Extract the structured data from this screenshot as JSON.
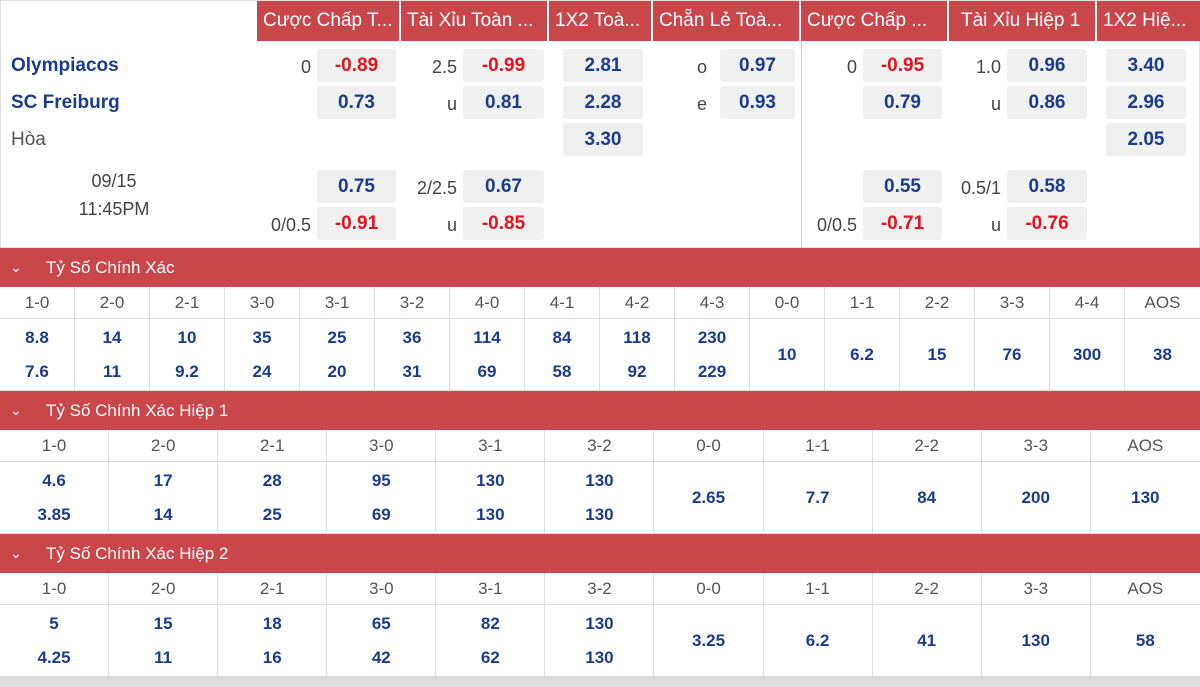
{
  "headers": [
    "Cược Chấp T...",
    "Tài Xỉu Toàn ...",
    "1X2 Toà...",
    "Chẵn Lẻ Toà...",
    "Cược Chấp ...",
    "Tài Xỉu Hiệp 1",
    "1X2 Hiệ..."
  ],
  "match": {
    "home": "Olympiacos",
    "away": "SC Freiburg",
    "draw": "Hòa",
    "date": "09/15",
    "time": "11:45PM"
  },
  "main": {
    "ah_line1": "0",
    "ah_home1": "-0.89",
    "ah_away1": "0.73",
    "ou_line1": "2.5",
    "ou_over1": "-0.99",
    "ou_u1": "u",
    "ou_under1": "0.81",
    "x12_home": "2.81",
    "x12_away": "2.28",
    "x12_draw": "3.30",
    "oe_o": "o",
    "oe_odd": "0.97",
    "oe_e": "e",
    "oe_even": "0.93",
    "ah_home2": "0.75",
    "ah_line2": "0/0.5",
    "ah_away2": "-0.91",
    "ou_line2": "2/2.5",
    "ou_over2": "0.67",
    "ou_u2": "u",
    "ou_under2": "-0.85"
  },
  "half1": {
    "ah_line1": "0",
    "ah_home1": "-0.95",
    "ah_away1": "0.79",
    "ou_line1": "1.0",
    "ou_over1": "0.96",
    "ou_u1": "u",
    "ou_under1": "0.86",
    "x12_home": "3.40",
    "x12_away": "2.96",
    "x12_draw": "2.05",
    "ah_home2": "0.55",
    "ah_line2": "0/0.5",
    "ah_away2": "-0.71",
    "ou_line2": "0.5/1",
    "ou_over2": "0.58",
    "ou_u2": "u",
    "ou_under2": "-0.76"
  },
  "sections": [
    {
      "title": "Tỷ Số Chính Xác",
      "cells": [
        {
          "label": "1-0",
          "v": [
            "8.8",
            "7.6"
          ]
        },
        {
          "label": "2-0",
          "v": [
            "14",
            "11"
          ]
        },
        {
          "label": "2-1",
          "v": [
            "10",
            "9.2"
          ]
        },
        {
          "label": "3-0",
          "v": [
            "35",
            "24"
          ]
        },
        {
          "label": "3-1",
          "v": [
            "25",
            "20"
          ]
        },
        {
          "label": "3-2",
          "v": [
            "36",
            "31"
          ]
        },
        {
          "label": "4-0",
          "v": [
            "114",
            "69"
          ]
        },
        {
          "label": "4-1",
          "v": [
            "84",
            "58"
          ]
        },
        {
          "label": "4-2",
          "v": [
            "118",
            "92"
          ]
        },
        {
          "label": "4-3",
          "v": [
            "230",
            "229"
          ]
        },
        {
          "label": "0-0",
          "v": [
            "10"
          ]
        },
        {
          "label": "1-1",
          "v": [
            "6.2"
          ]
        },
        {
          "label": "2-2",
          "v": [
            "15"
          ]
        },
        {
          "label": "3-3",
          "v": [
            "76"
          ]
        },
        {
          "label": "4-4",
          "v": [
            "300"
          ]
        },
        {
          "label": "AOS",
          "v": [
            "38"
          ]
        }
      ]
    },
    {
      "title": "Tỷ Số Chính Xác Hiệp 1",
      "cells": [
        {
          "label": "1-0",
          "v": [
            "4.6",
            "3.85"
          ]
        },
        {
          "label": "2-0",
          "v": [
            "17",
            "14"
          ]
        },
        {
          "label": "2-1",
          "v": [
            "28",
            "25"
          ]
        },
        {
          "label": "3-0",
          "v": [
            "95",
            "69"
          ]
        },
        {
          "label": "3-1",
          "v": [
            "130",
            "130"
          ]
        },
        {
          "label": "3-2",
          "v": [
            "130",
            "130"
          ]
        },
        {
          "label": "0-0",
          "v": [
            "2.65"
          ]
        },
        {
          "label": "1-1",
          "v": [
            "7.7"
          ]
        },
        {
          "label": "2-2",
          "v": [
            "84"
          ]
        },
        {
          "label": "3-3",
          "v": [
            "200"
          ]
        },
        {
          "label": "AOS",
          "v": [
            "130"
          ]
        }
      ]
    },
    {
      "title": "Tỷ Số Chính Xác Hiệp 2",
      "cells": [
        {
          "label": "1-0",
          "v": [
            "5",
            "4.25"
          ]
        },
        {
          "label": "2-0",
          "v": [
            "15",
            "11"
          ]
        },
        {
          "label": "2-1",
          "v": [
            "18",
            "16"
          ]
        },
        {
          "label": "3-0",
          "v": [
            "65",
            "42"
          ]
        },
        {
          "label": "3-1",
          "v": [
            "82",
            "62"
          ]
        },
        {
          "label": "3-2",
          "v": [
            "130",
            "130"
          ]
        },
        {
          "label": "0-0",
          "v": [
            "3.25"
          ]
        },
        {
          "label": "1-1",
          "v": [
            "6.2"
          ]
        },
        {
          "label": "2-2",
          "v": [
            "41"
          ]
        },
        {
          "label": "3-3",
          "v": [
            "130"
          ]
        },
        {
          "label": "AOS",
          "v": [
            "58"
          ]
        }
      ]
    }
  ]
}
